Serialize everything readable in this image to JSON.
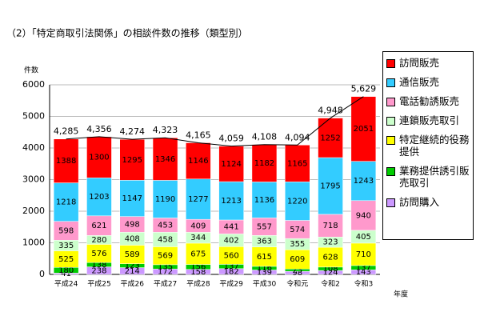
{
  "chart_data": {
    "type": "bar",
    "stacked": true,
    "title": "（2）「特定商取引法関係」の相談件数の推移（類型別）",
    "y_label": "件数",
    "x_label": "年度",
    "categories": [
      "平成24",
      "平成25",
      "平成26",
      "平成27",
      "平成28",
      "平成29",
      "平成30",
      "令和元",
      "令和2",
      "令和3"
    ],
    "series": [
      {
        "name": "訪問購入",
        "color": "#cc99ff",
        "values": [
          41,
          238,
          214,
          172,
          158,
          182,
          139,
          98,
          124,
          143
        ]
      },
      {
        "name": "業務提供誘引販売取引",
        "color": "#00cc00",
        "values": [
          180,
          138,
          123,
          135,
          156,
          137,
          116,
          73,
          108,
          137
        ]
      },
      {
        "name": "特定継続的役務提供",
        "color": "#ffff00",
        "values": [
          525,
          576,
          589,
          569,
          675,
          560,
          615,
          609,
          628,
          710
        ]
      },
      {
        "name": "連鎖販売取引",
        "color": "#ccffcc",
        "values": [
          335,
          280,
          408,
          458,
          344,
          402,
          363,
          355,
          323,
          405
        ]
      },
      {
        "name": "電話勧誘販売",
        "color": "#ff99cc",
        "values": [
          598,
          621,
          498,
          453,
          409,
          441,
          557,
          574,
          718,
          940
        ]
      },
      {
        "name": "通信販売",
        "color": "#33ccff",
        "values": [
          1218,
          1203,
          1147,
          1190,
          1277,
          1213,
          1136,
          1220,
          1795,
          1243
        ]
      },
      {
        "name": "訪問販売",
        "color": "#ff0000",
        "values": [
          1388,
          1300,
          1295,
          1346,
          1146,
          1124,
          1182,
          1165,
          1252,
          2051
        ]
      }
    ],
    "totals": [
      4285,
      4356,
      4274,
      4323,
      4165,
      4059,
      4108,
      4094,
      4948,
      5629
    ],
    "total_labels": [
      "4,285",
      "4,356",
      "4,274",
      "4,323",
      "4,165",
      "4,059",
      "4,108",
      "4,094",
      "4,948",
      "5,629"
    ],
    "ylim": [
      0,
      6000
    ],
    "yticks": [
      0,
      1000,
      2000,
      3000,
      4000,
      5000,
      6000
    ]
  }
}
